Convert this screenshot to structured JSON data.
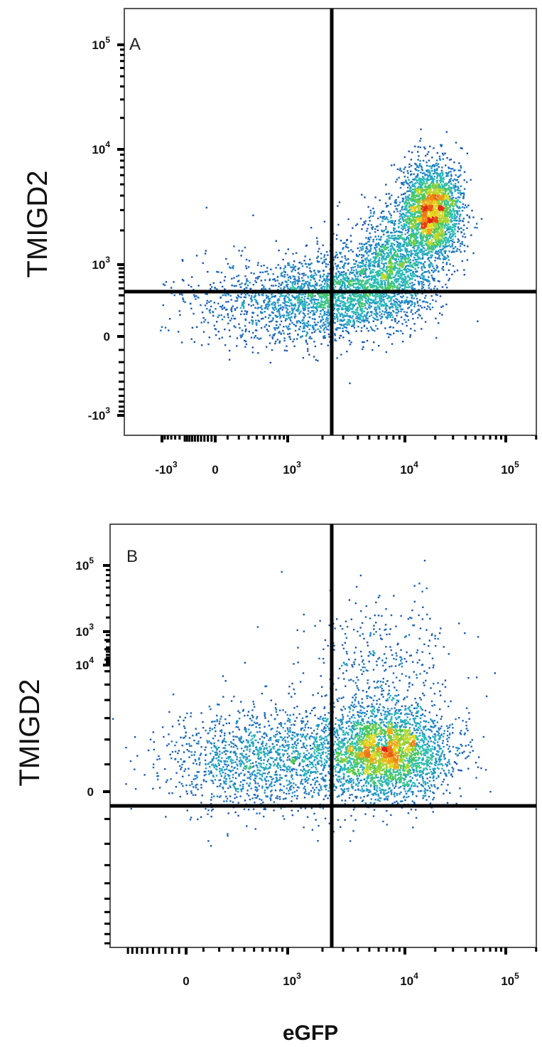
{
  "chart_data": [
    {
      "type": "scatter",
      "panel_label": "A",
      "ylabel": "TMIGD2",
      "xlabel": "",
      "x_scale": "biexponential",
      "y_scale": "biexponential",
      "x_ticks": [
        {
          "base": "-10",
          "exp": "3",
          "value": -1000
        },
        {
          "base": "0",
          "exp": "",
          "value": 0
        },
        {
          "base": "10",
          "exp": "3",
          "value": 1000
        },
        {
          "base": "10",
          "exp": "4",
          "value": 10000
        },
        {
          "base": "10",
          "exp": "5",
          "value": 100000
        }
      ],
      "y_ticks": [
        {
          "base": "10",
          "exp": "5",
          "value": 100000
        },
        {
          "base": "10",
          "exp": "4",
          "value": 10000
        },
        {
          "base": "10",
          "exp": "3",
          "value": 1000
        },
        {
          "base": "0",
          "exp": "",
          "value": 0
        },
        {
          "base": "-10",
          "exp": "3",
          "value": -1000
        }
      ],
      "gate": {
        "x": 2500,
        "y": 600
      },
      "populations": [
        {
          "center": [
            700,
            300
          ],
          "spread": [
            0.35,
            0.18
          ],
          "count": 900
        },
        {
          "center": [
            3000,
            400
          ],
          "spread": [
            0.25,
            0.15
          ],
          "count": 1400
        },
        {
          "center": [
            8000,
            1000
          ],
          "spread": [
            0.18,
            0.2
          ],
          "count": 1500
        },
        {
          "center": [
            18000,
            3000
          ],
          "spread": [
            0.12,
            0.18
          ],
          "count": 2400
        }
      ]
    },
    {
      "type": "scatter",
      "panel_label": "B",
      "ylabel": "TMIGD2",
      "xlabel": "eGFP",
      "x_scale": "biexponential",
      "y_scale": "biexponential",
      "x_ticks": [
        {
          "base": "0",
          "exp": "",
          "value": 0
        },
        {
          "base": "10",
          "exp": "3",
          "value": 1000
        },
        {
          "base": "10",
          "exp": "4",
          "value": 10000
        },
        {
          "base": "10",
          "exp": "5",
          "value": 100000
        }
      ],
      "y_ticks": [
        {
          "base": "10",
          "exp": "5",
          "value": 100000
        },
        {
          "base": "10",
          "exp": "4",
          "value": 10000
        },
        {
          "base": "10",
          "exp": "3",
          "value": 1000
        },
        {
          "base": "0",
          "exp": "",
          "value": 0
        }
      ],
      "gate": {
        "x": 2500,
        "y": 500
      },
      "populations": [
        {
          "center": [
            700,
            120
          ],
          "spread": [
            0.4,
            0.2
          ],
          "count": 1600
        },
        {
          "center": [
            7000,
            150
          ],
          "spread": [
            0.25,
            0.18
          ],
          "count": 3000
        },
        {
          "center": [
            6000,
            700
          ],
          "spread": [
            0.3,
            0.25
          ],
          "count": 350
        }
      ]
    }
  ],
  "colors": {
    "density_low": "#1a3aa8",
    "density_mid": "#22c0c8",
    "density_high": "#e02010",
    "gate_line": "#000000"
  }
}
